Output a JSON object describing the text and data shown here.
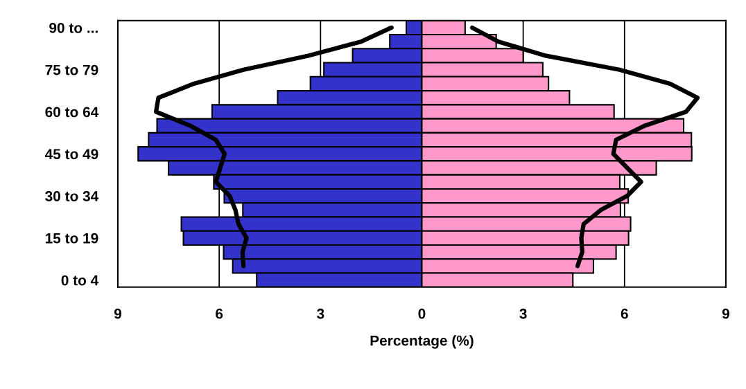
{
  "chart_data": {
    "type": "bar",
    "orientation": "horizontal",
    "xlabel": "Percentage (%)",
    "categories": [
      "90 to ...",
      null,
      null,
      "75 to 79",
      null,
      null,
      "60 to 64",
      null,
      null,
      "45 to 49",
      null,
      null,
      "30 to 34",
      null,
      null,
      "15 to 19",
      null,
      null,
      "0 to 4"
    ],
    "series": [
      {
        "color": "#3333cc",
        "values": [
          -0.46,
          -0.95,
          -2.05,
          -2.9,
          -3.3,
          -4.27,
          -6.21,
          -7.84,
          -8.09,
          -8.4,
          -7.5,
          -6.16,
          -5.85,
          -5.3,
          -7.12,
          -7.06,
          -5.87,
          -5.6,
          -4.89
        ]
      },
      {
        "color": "#ff99cc",
        "values": [
          1.28,
          2.2,
          3.0,
          3.58,
          3.75,
          4.37,
          5.69,
          7.75,
          7.98,
          7.99,
          6.94,
          5.86,
          6.11,
          5.88,
          6.18,
          6.12,
          5.75,
          5.08,
          4.47
        ]
      },
      {
        "type": "line",
        "color": "#000000",
        "values": [
          -0.9,
          -1.8,
          -3.36,
          -5.28,
          -6.75,
          -7.8,
          -7.87,
          -6.85,
          -6.1,
          -5.84,
          -5.97,
          -6.1,
          -5.69,
          -5.52,
          -5.43,
          -5.19,
          -5.31,
          -5.28,
          null
        ]
      },
      {
        "type": "line",
        "color": "#000000",
        "values": [
          1.49,
          2.27,
          3.66,
          5.85,
          7.35,
          8.16,
          7.82,
          6.59,
          5.75,
          5.67,
          6.08,
          6.49,
          6.08,
          5.3,
          4.79,
          4.72,
          4.75,
          4.61,
          null
        ]
      }
    ],
    "xlim": [
      -9,
      9
    ],
    "xticks": [
      {
        "value": -9,
        "label": "9"
      },
      {
        "value": -6,
        "label": "6"
      },
      {
        "value": -3,
        "label": "3"
      },
      0,
      3,
      6,
      9
    ],
    "stacked": true,
    "grid": "x",
    "legend": false,
    "marker": "none",
    "line_style": "solid"
  }
}
